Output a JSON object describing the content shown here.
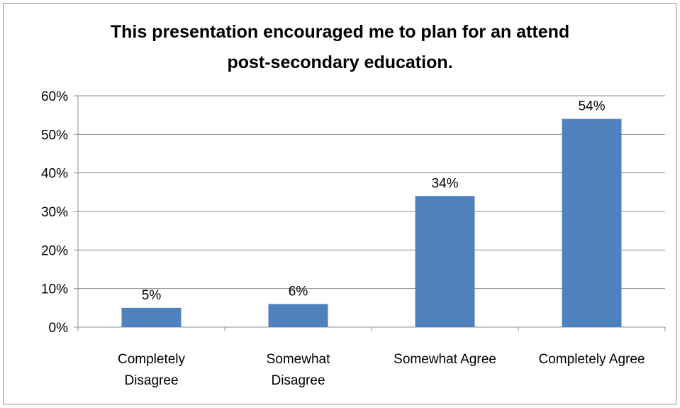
{
  "chart_data": {
    "type": "bar",
    "title_lines": [
      "This presentation encouraged me to plan for an attend",
      "post-secondary education."
    ],
    "categories": [
      [
        "Completely",
        "Disagree"
      ],
      [
        "Somewhat",
        "Disagree"
      ],
      [
        "Somewhat Agree"
      ],
      [
        "Completely Agree"
      ]
    ],
    "values": [
      5,
      6,
      34,
      54
    ],
    "data_labels": [
      "5%",
      "6%",
      "34%",
      "54%"
    ],
    "y_ticks": [
      "0%",
      "10%",
      "20%",
      "30%",
      "40%",
      "50%",
      "60%"
    ],
    "ylim": [
      0,
      60
    ],
    "grid": true,
    "legend": "none",
    "bar_color": "#4f81bd",
    "grid_color": "#8c8c8c"
  }
}
